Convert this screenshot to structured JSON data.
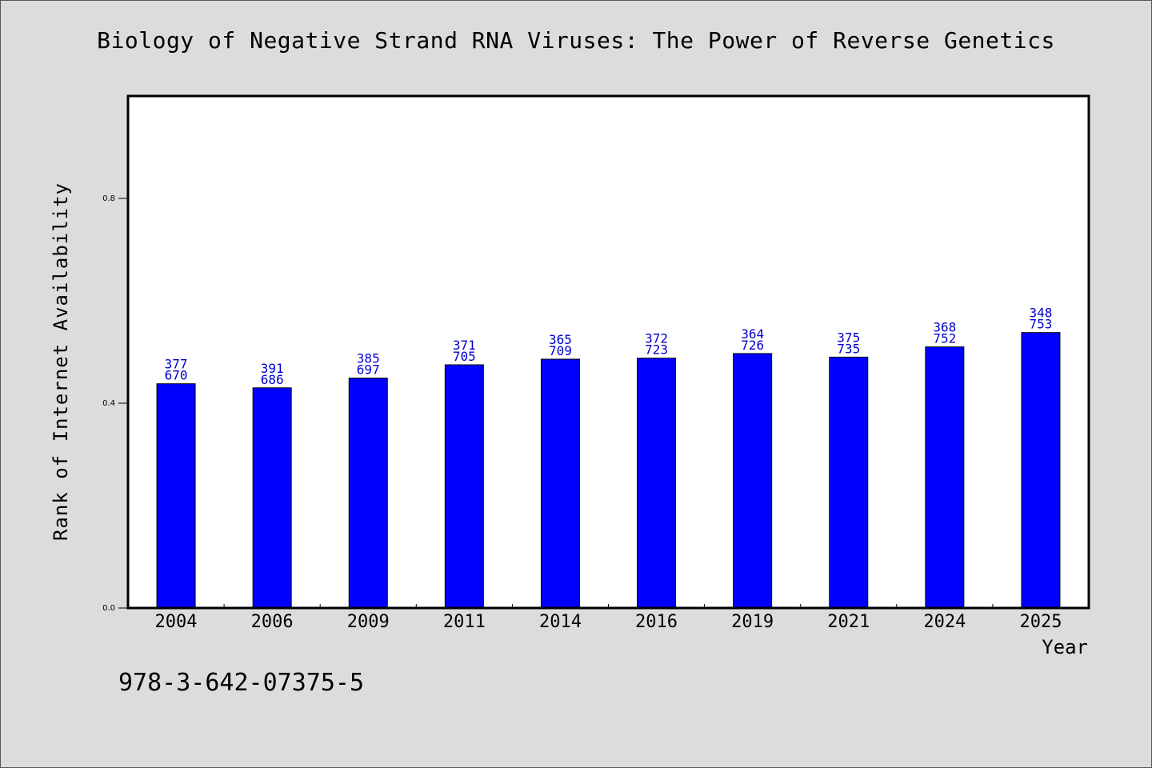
{
  "chart_data": {
    "type": "bar",
    "title": "Biology of Negative Strand RNA Viruses: The Power of Reverse Genetics",
    "xlabel": "Year",
    "ylabel": "Rank of Internet Availability",
    "categories": [
      "2004",
      "2006",
      "2009",
      "2011",
      "2014",
      "2016",
      "2019",
      "2021",
      "2024",
      "2025"
    ],
    "values": [
      0.438,
      0.43,
      0.449,
      0.475,
      0.486,
      0.488,
      0.497,
      0.49,
      0.51,
      0.538
    ],
    "value_labels": [
      [
        "377",
        "670"
      ],
      [
        "391",
        "686"
      ],
      [
        "385",
        "697"
      ],
      [
        "371",
        "705"
      ],
      [
        "365",
        "709"
      ],
      [
        "372",
        "723"
      ],
      [
        "364",
        "726"
      ],
      [
        "375",
        "735"
      ],
      [
        "368",
        "752"
      ],
      [
        "348",
        "753"
      ]
    ],
    "ylim": [
      0,
      1.0
    ],
    "yticks": [
      "0.0",
      "0.4",
      "0.8"
    ],
    "ytick_values": [
      0.0,
      0.4,
      0.8
    ],
    "grid": false,
    "bar_color": "#0000ff",
    "label_color": "#0000cc"
  },
  "footer": {
    "isbn": "978-3-642-07375-5"
  }
}
